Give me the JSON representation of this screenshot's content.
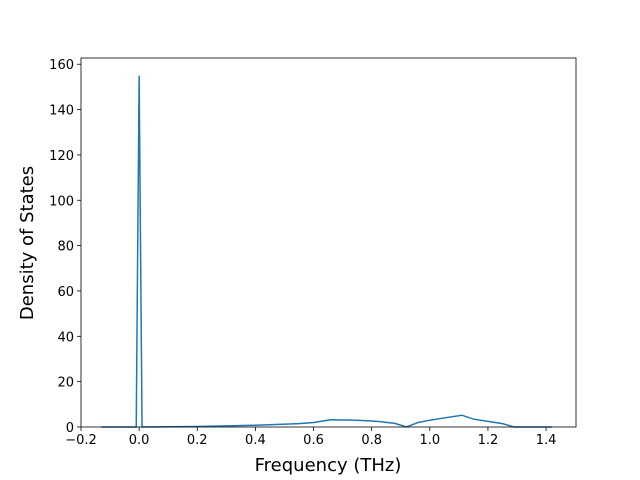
{
  "chart_data": {
    "type": "line",
    "xlabel": "Frequency (THz)",
    "ylabel": "Density of States",
    "x": [
      -0.13,
      -0.01,
      0.0,
      0.01,
      0.2,
      0.4,
      0.55,
      0.6,
      0.66,
      0.75,
      0.82,
      0.88,
      0.92,
      0.96,
      1.0,
      1.05,
      1.11,
      1.15,
      1.2,
      1.25,
      1.29,
      1.42
    ],
    "series": [
      {
        "color": "#1f77b4",
        "values": [
          0,
          0,
          155,
          0,
          0.2,
          0.8,
          1.5,
          2.0,
          3.2,
          3.0,
          2.5,
          1.6,
          0,
          2.0,
          3.0,
          4.0,
          5.2,
          3.5,
          2.5,
          1.5,
          0,
          0
        ]
      }
    ],
    "xlim": [
      -0.2,
      1.503
    ],
    "ylim": [
      0,
      162.75
    ],
    "xticks": [
      {
        "value": -0.2,
        "label": "−0.2"
      },
      {
        "value": 0,
        "label": "0.0"
      },
      {
        "value": 0.2,
        "label": "0.2"
      },
      {
        "value": 0.4,
        "label": "0.4"
      },
      {
        "value": 0.6,
        "label": "0.6"
      },
      {
        "value": 0.8,
        "label": "0.8"
      },
      {
        "value": 1,
        "label": "1.0"
      },
      {
        "value": 1.2,
        "label": "1.2"
      },
      {
        "value": 1.4,
        "label": "1.4"
      }
    ],
    "yticks": [
      0,
      20,
      40,
      60,
      80,
      100,
      120,
      140,
      160
    ]
  }
}
